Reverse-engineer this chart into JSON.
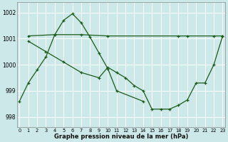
{
  "background_color": "#cce8e8",
  "grid_color": "#ffffff",
  "line_color": "#1a5c1a",
  "title": "Graphe pression niveau de la mer (hPa)",
  "xlim": [
    -0.3,
    23.3
  ],
  "ylim": [
    997.6,
    1002.4
  ],
  "yticks": [
    998,
    999,
    1000,
    1001,
    1002
  ],
  "xticks": [
    0,
    1,
    2,
    3,
    4,
    5,
    6,
    7,
    8,
    9,
    10,
    11,
    12,
    13,
    14,
    15,
    16,
    17,
    18,
    19,
    20,
    21,
    22,
    23
  ],
  "series": [
    {
      "x": [
        0,
        1,
        2,
        3,
        4,
        5,
        6,
        7,
        8,
        9,
        10,
        11,
        14
      ],
      "y": [
        998.6,
        999.3,
        999.8,
        1000.3,
        1001.15,
        1001.7,
        1001.95,
        1001.6,
        1001.05,
        1000.45,
        999.85,
        999.0,
        998.6
      ]
    },
    {
      "x": [
        1,
        4,
        7,
        10,
        18,
        19,
        22,
        23
      ],
      "y": [
        1001.1,
        1001.15,
        1001.15,
        1001.1,
        1001.1,
        1001.1,
        1001.1,
        1001.1
      ]
    },
    {
      "x": [
        1,
        3,
        5,
        7,
        9,
        10,
        11,
        12,
        13,
        14,
        15,
        16,
        17,
        18,
        19,
        20,
        21,
        22,
        23
      ],
      "y": [
        1000.9,
        1000.5,
        1000.1,
        999.7,
        999.5,
        999.9,
        999.7,
        999.5,
        999.2,
        999.0,
        998.3,
        998.3,
        998.3,
        998.45,
        998.65,
        999.3,
        999.3,
        1000.0,
        1001.1
      ]
    }
  ]
}
